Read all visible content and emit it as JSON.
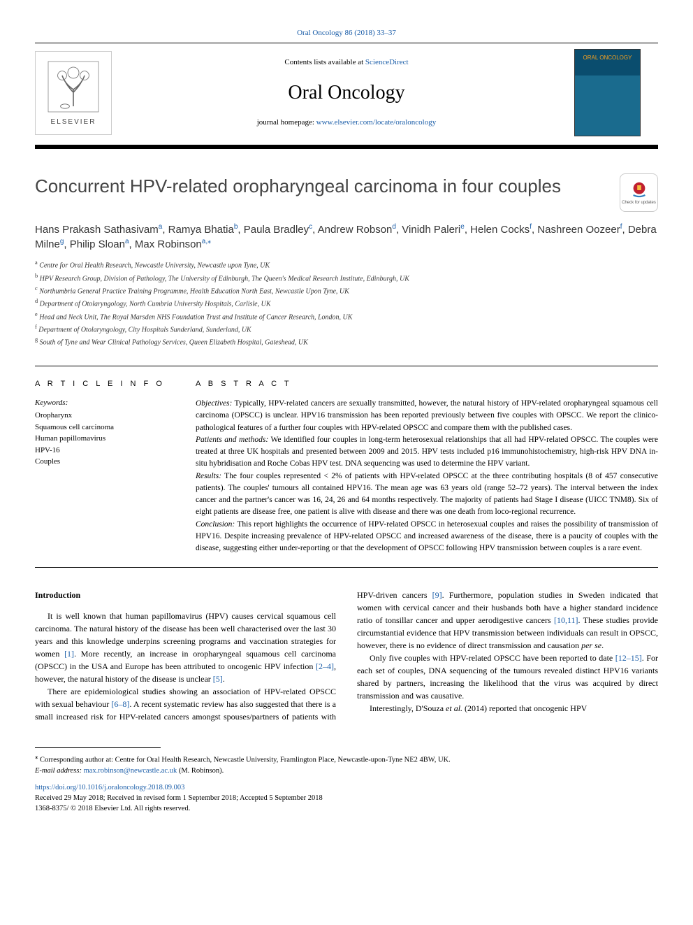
{
  "header": {
    "top_citation": "Oral Oncology 86 (2018) 33–37",
    "contents_prefix": "Contents lists available at ",
    "contents_link": "ScienceDirect",
    "journal_name": "Oral Oncology",
    "homepage_prefix": "journal homepage: ",
    "homepage_url": "www.elsevier.com/locate/oraloncology",
    "publisher_logo_text": "ELSEVIER",
    "cover_title": "ORAL ONCOLOGY",
    "check_updates_label": "Check for updates"
  },
  "article": {
    "title": "Concurrent HPV-related oropharyngeal carcinoma in four couples",
    "authors_html": "Hans Prakash Sathasivam<sup>a</sup>, Ramya Bhatia<sup>b</sup>, Paula Bradley<sup>c</sup>, Andrew Robson<sup>d</sup>, Vinidh Paleri<sup>e</sup>, Helen Cocks<sup>f</sup>, Nashreen Oozeer<sup>f</sup>, Debra Milne<sup>g</sup>, Philip Sloan<sup>a</sup>, Max Robinson<sup>a,</sup><sup>⁎</sup>",
    "affiliations": [
      {
        "sup": "a",
        "text": "Centre for Oral Health Research, Newcastle University, Newcastle upon Tyne, UK"
      },
      {
        "sup": "b",
        "text": "HPV Research Group, Division of Pathology, The University of Edinburgh, The Queen's Medical Research Institute, Edinburgh, UK"
      },
      {
        "sup": "c",
        "text": "Northumbria General Practice Training Programme, Health Education North East, Newcastle Upon Tyne, UK"
      },
      {
        "sup": "d",
        "text": "Department of Otolaryngology, North Cumbria University Hospitals, Carlisle, UK"
      },
      {
        "sup": "e",
        "text": "Head and Neck Unit, The Royal Marsden NHS Foundation Trust and Institute of Cancer Research, London, UK"
      },
      {
        "sup": "f",
        "text": "Department of Otolaryngology, City Hospitals Sunderland, Sunderland, UK"
      },
      {
        "sup": "g",
        "text": "South of Tyne and Wear Clinical Pathology Services, Queen Elizabeth Hospital, Gateshead, UK"
      }
    ]
  },
  "article_info": {
    "section_label": "A R T I C L E  I N F O",
    "keywords_label": "Keywords:",
    "keywords": [
      "Oropharynx",
      "Squamous cell carcinoma",
      "Human papillomavirus",
      "HPV-16",
      "Couples"
    ]
  },
  "abstract": {
    "section_label": "A B S T R A C T",
    "objectives_label": "Objectives:",
    "objectives": " Typically, HPV-related cancers are sexually transmitted, however, the natural history of HPV-related oropharyngeal squamous cell carcinoma (OPSCC) is unclear. HPV16 transmission has been reported previously between five couples with OPSCC. We report the clinico-pathological features of a further four couples with HPV-related OPSCC and compare them with the published cases.",
    "methods_label": "Patients and methods:",
    "methods": " We identified four couples in long-term heterosexual relationships that all had HPV-related OPSCC. The couples were treated at three UK hospitals and presented between 2009 and 2015. HPV tests included p16 immunohistochemistry, high-risk HPV DNA in-situ hybridisation and Roche Cobas HPV test. DNA sequencing was used to determine the HPV variant.",
    "results_label": "Results:",
    "results": " The four couples represented < 2% of patients with HPV-related OPSCC at the three contributing hospitals (8 of 457 consecutive patients). The couples' tumours all contained HPV16. The mean age was 63 years old (range 52–72 years). The interval between the index cancer and the partner's cancer was 16, 24, 26 and 64 months respectively. The majority of patients had Stage I disease (UICC TNM8). Six of eight patients are disease free, one patient is alive with disease and there was one death from loco-regional recurrence.",
    "conclusion_label": "Conclusion:",
    "conclusion": " This report highlights the occurrence of HPV-related OPSCC in heterosexual couples and raises the possibility of transmission of HPV16. Despite increasing prevalence of HPV-related OPSCC and increased awareness of the disease, there is a paucity of couples with the disease, suggesting either under-reporting or that the development of OPSCC following HPV transmission between couples is a rare event."
  },
  "body": {
    "intro_heading": "Introduction",
    "p1a": "It is well known that human papillomavirus (HPV) causes cervical squamous cell carcinoma. The natural history of the disease has been well characterised over the last 30 years and this knowledge underpins screening programs and vaccination strategies for women ",
    "ref1": "[1]",
    "p1b": ". More recently, an increase in oropharyngeal squamous cell carcinoma (OPSCC) in the USA and Europe has been attributed to oncogenic HPV infection ",
    "ref2_4": "[2–4]",
    "p1c": ", however, the natural history of the disease is unclear ",
    "ref5": "[5]",
    "p1d": ".",
    "p2a": "There are epidemiological studies showing an association of HPV-related OPSCC with sexual behaviour ",
    "ref6_8": "[6–8]",
    "p2b": ". A recent systematic review has also suggested that there is a small increased risk for HPV-related",
    "p3a": "cancers amongst spouses/partners of patients with HPV-driven cancers ",
    "ref9": "[9]",
    "p3b": ". Furthermore, population studies in Sweden indicated that women with cervical cancer and their husbands both have a higher standard incidence ratio of tonsillar cancer and upper aerodigestive cancers ",
    "ref10_11": "[10,11]",
    "p3c": ". These studies provide circumstantial evidence that HPV transmission between individuals can result in OPSCC, however, there is no evidence of direct transmission and causation ",
    "per_se": "per se",
    "p3d": ".",
    "p4a": "Only five couples with HPV-related OPSCC have been reported to date ",
    "ref12_15": "[12–15]",
    "p4b": ". For each set of couples, DNA sequencing of the tumours revealed distinct HPV16 variants shared by partners, increasing the likelihood that the virus was acquired by direct transmission and was causative.",
    "p5_prefix": "Interestingly, D'Souza ",
    "p5_etal": "et al.",
    "p5_suffix": " (2014) reported that oncogenic HPV"
  },
  "footer": {
    "corr_marker": "⁎",
    "corr_text": " Corresponding author at: Centre for Oral Health Research, Newcastle University, Framlington Place, Newcastle-upon-Tyne NE2 4BW, UK.",
    "email_label": "E-mail address: ",
    "email": "max.robinson@newcastle.ac.uk",
    "email_suffix": " (M. Robinson).",
    "doi": "https://doi.org/10.1016/j.oraloncology.2018.09.003",
    "received": "Received 29 May 2018; Received in revised form 1 September 2018; Accepted 5 September 2018",
    "copyright": "1368-8375/ © 2018 Elsevier Ltd. All rights reserved."
  },
  "colors": {
    "link": "#1a5da8",
    "rule": "#000000"
  }
}
